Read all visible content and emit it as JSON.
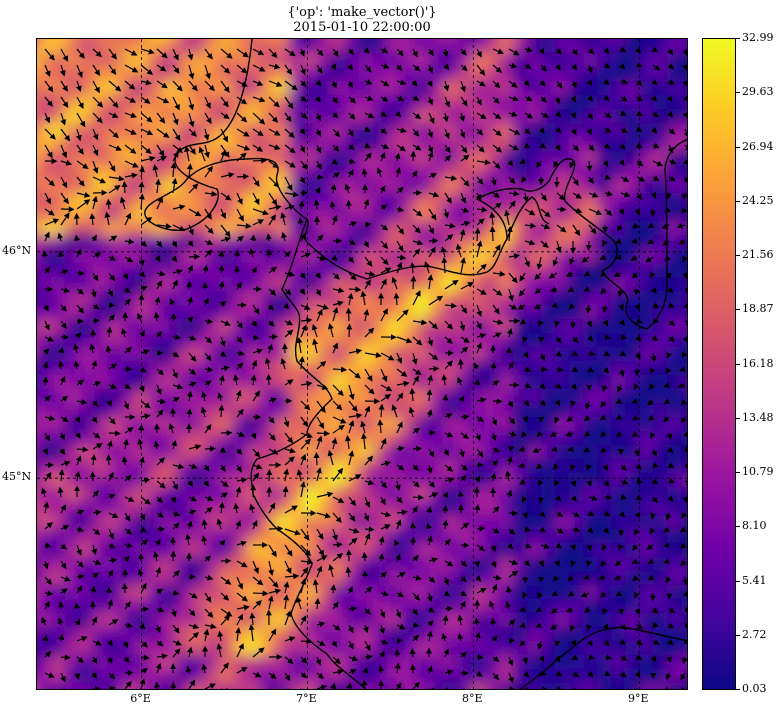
{
  "figure": {
    "title_line1": "{'op': 'make_vector()'}",
    "title_line2": "2015-01-10 22:00:00"
  },
  "map": {
    "lon_ticks": [
      {
        "label": "6°E",
        "value": 6
      },
      {
        "label": "7°E",
        "value": 7
      },
      {
        "label": "8°E",
        "value": 8
      },
      {
        "label": "9°E",
        "value": 9
      }
    ],
    "lat_ticks": [
      {
        "label": "46°N",
        "value": 46
      },
      {
        "label": "45°N",
        "value": 45
      }
    ],
    "lon_range": [
      5.37,
      9.3
    ],
    "lat_range": [
      44.06,
      46.94
    ],
    "gridlines": true,
    "colormap": "plasma",
    "background_field": "wind speed magnitude",
    "overlay": "wind vector arrows (black)"
  },
  "colorbar": {
    "ticks": [
      "32.99",
      "29.63",
      "26.94",
      "24.25",
      "21.56",
      "18.87",
      "16.18",
      "13.48",
      "10.79",
      "8.10",
      "5.41",
      "2.72",
      "0.03"
    ],
    "min": 0.03,
    "max": 32.99,
    "colors": [
      "#0d0887",
      "#46039f",
      "#7201a8",
      "#9c179e",
      "#bd3786",
      "#d8576b",
      "#ed7953",
      "#fb9f3a",
      "#fdca26",
      "#f0f921"
    ]
  }
}
